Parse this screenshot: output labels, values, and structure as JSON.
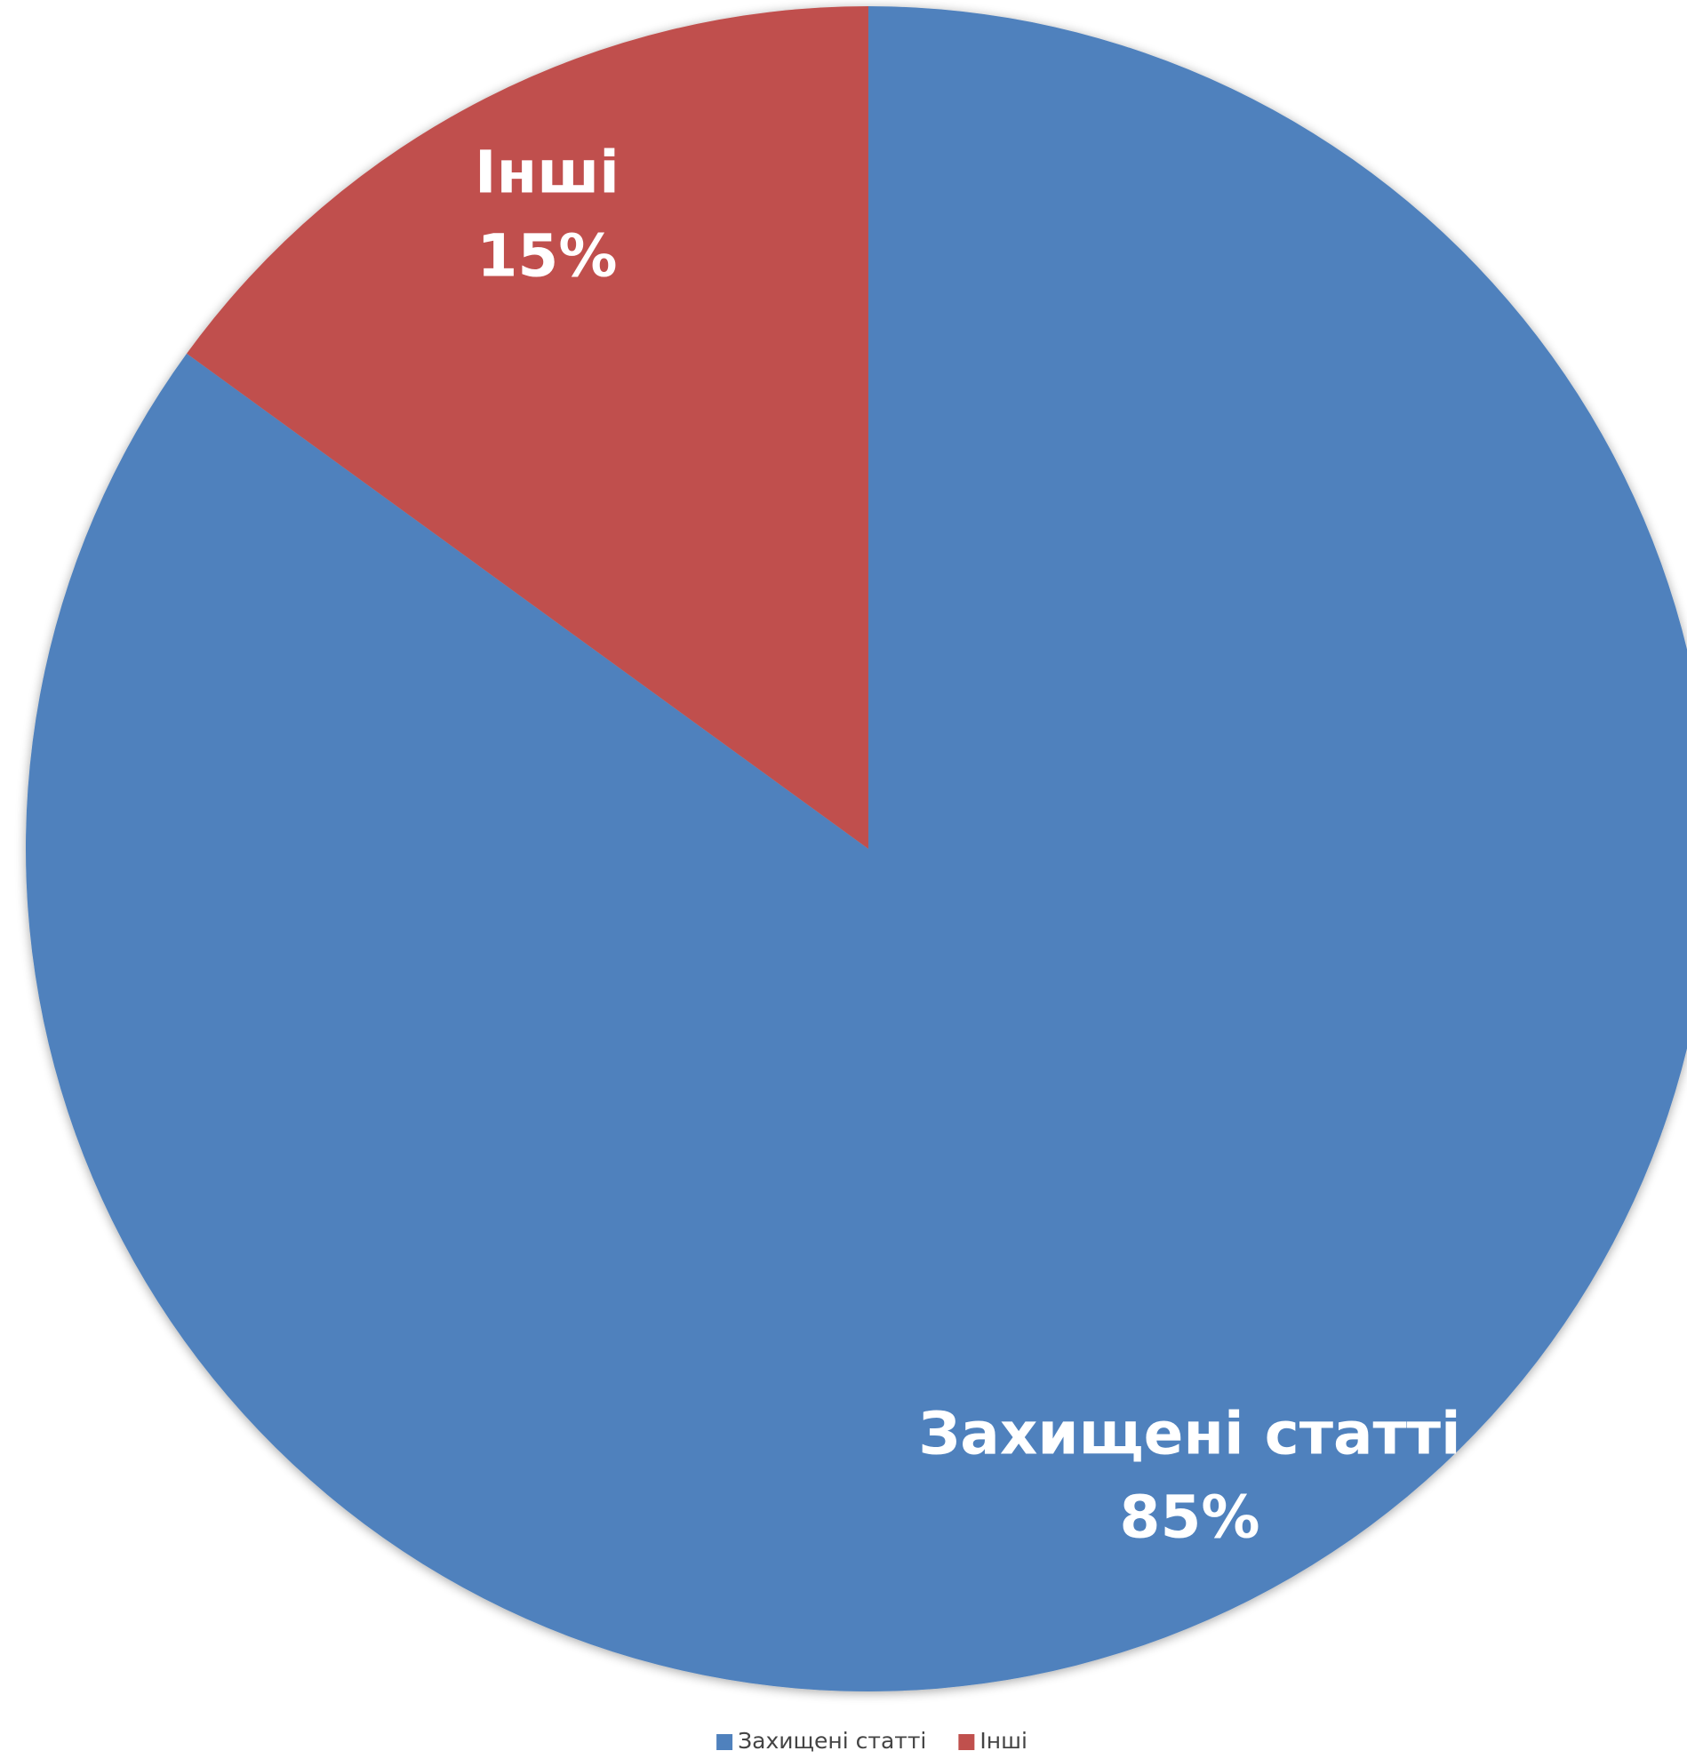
{
  "chart_data": {
    "type": "pie",
    "categories": [
      "Захищені статті",
      "Інші"
    ],
    "values": [
      85,
      15
    ],
    "value_labels": [
      "85%",
      "15%"
    ],
    "colors": [
      "#4f81bd",
      "#c0504d"
    ],
    "legend": "bottom"
  }
}
